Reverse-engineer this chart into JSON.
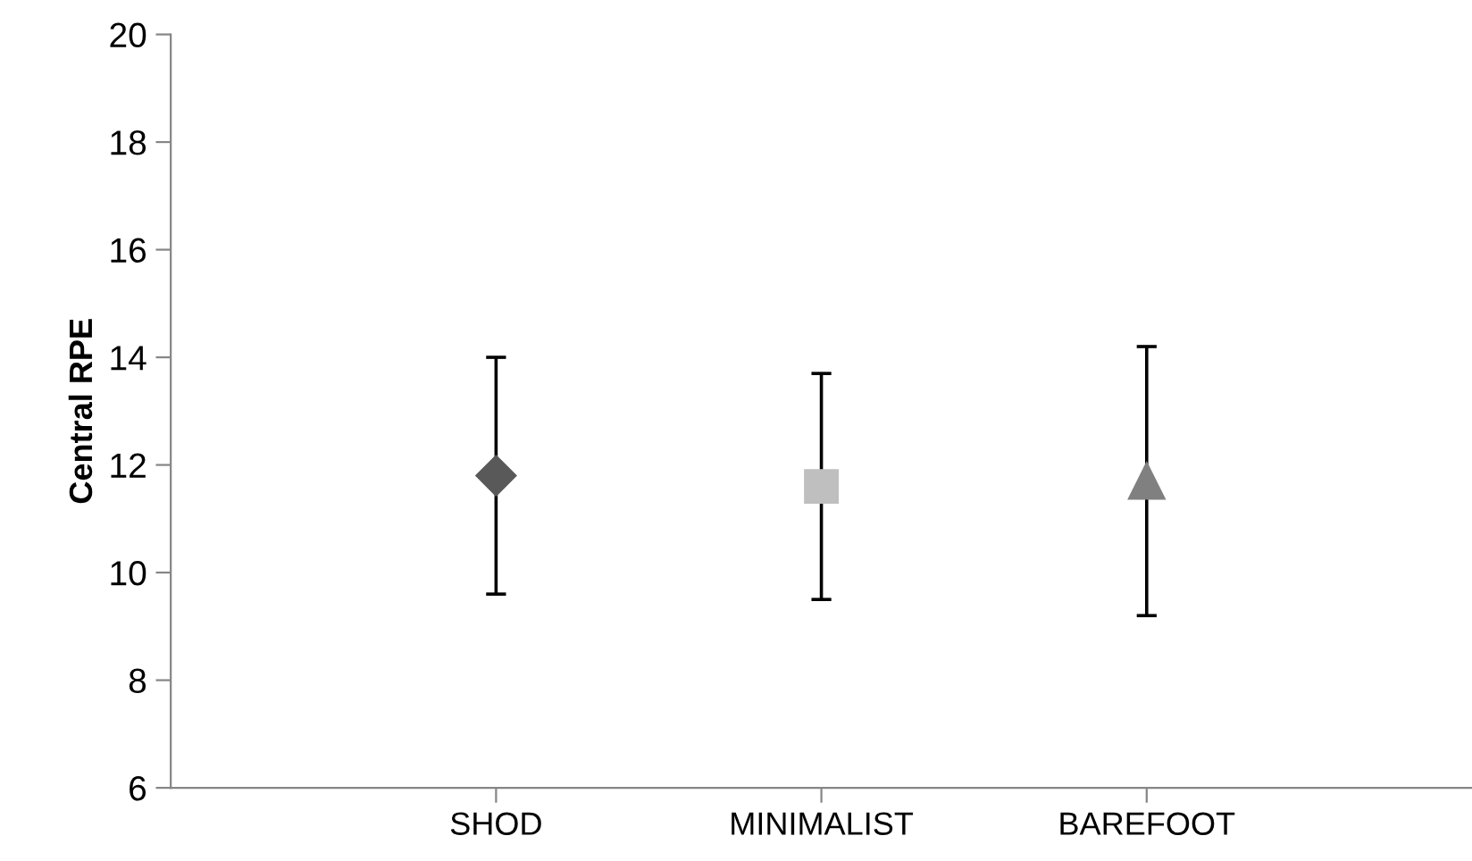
{
  "chart_data": {
    "type": "scatter",
    "ylabel": "Central RPE",
    "categories": [
      "SHOD",
      "MINIMALIST",
      "BAREFOOT"
    ],
    "series": [
      {
        "x": [
          "SHOD"
        ],
        "values": [
          11.8
        ],
        "errors": [
          2.2
        ],
        "color": "#595959",
        "marker": "diamond"
      },
      {
        "x": [
          "MINIMALIST"
        ],
        "values": [
          11.6
        ],
        "errors": [
          2.1
        ],
        "color": "#bfbfbf",
        "marker": "square"
      },
      {
        "x": [
          "BAREFOOT"
        ],
        "values": [
          11.7
        ],
        "errors": [
          2.5
        ],
        "color": "#808080",
        "marker": "triangle"
      }
    ],
    "ylim": [
      6,
      20
    ],
    "yticks": [
      6,
      8,
      10,
      12,
      14,
      16,
      18,
      20
    ],
    "grid": false,
    "legend": false
  }
}
